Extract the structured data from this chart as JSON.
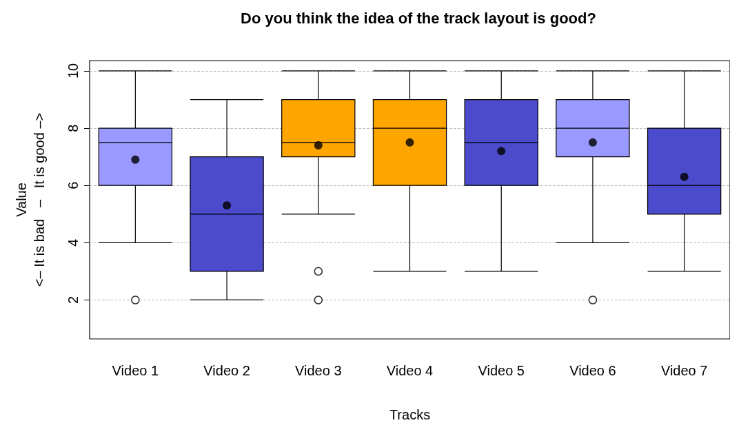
{
  "chart_data": {
    "type": "box",
    "title": "Do you think the idea of the track layout is good?",
    "xlabel": "Tracks",
    "ylabel": "Value\n<– It is bad   –   It is good –>",
    "categories": [
      "Video 1",
      "Video 2",
      "Video 3",
      "Video 4",
      "Video 5",
      "Video 6",
      "Video 7"
    ],
    "colors": [
      "#9999ff",
      "#4b4bcc",
      "#ffa500",
      "#ffa500",
      "#4b4bcc",
      "#9999ff",
      "#4b4bcc"
    ],
    "boxes": [
      {
        "low": 4,
        "q1": 6,
        "median": 7.5,
        "q3": 8,
        "high": 10,
        "mean": 6.9,
        "outliers": [
          2
        ]
      },
      {
        "low": 2,
        "q1": 3,
        "median": 5,
        "q3": 7,
        "high": 9,
        "mean": 5.3
      },
      {
        "low": 5,
        "q1": 7,
        "median": 7.5,
        "q3": 9,
        "high": 10,
        "mean": 7.4,
        "outliers": [
          3,
          2
        ]
      },
      {
        "low": 3,
        "q1": 6,
        "median": 8,
        "q3": 9,
        "high": 10,
        "mean": 7.5
      },
      {
        "low": 3,
        "q1": 6,
        "median": 7.5,
        "q3": 9,
        "high": 10,
        "mean": 7.2
      },
      {
        "low": 4,
        "q1": 7,
        "median": 8,
        "q3": 9,
        "high": 10,
        "mean": 7.5,
        "outliers": [
          2
        ]
      },
      {
        "low": 3,
        "q1": 5,
        "median": 6,
        "q3": 8,
        "high": 10,
        "mean": 6.3
      }
    ],
    "ylim": [
      0.64,
      10.36
    ],
    "yticks": [
      2,
      4,
      6,
      8,
      10
    ],
    "grid": "y"
  }
}
